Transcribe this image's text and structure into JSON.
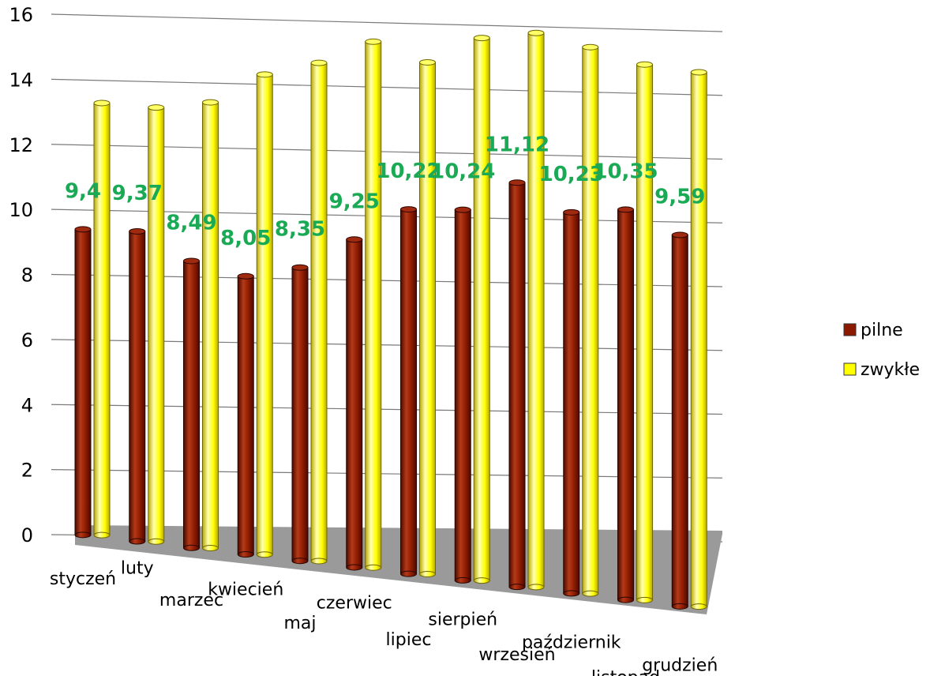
{
  "chart_data": {
    "type": "bar",
    "categories": [
      "styczeń",
      "luty",
      "marzec",
      "kwiecień",
      "maj",
      "czerwiec",
      "lipiec",
      "sierpień",
      "wrzesień",
      "październik",
      "listopad",
      "grudzień"
    ],
    "series": [
      {
        "name": "pilne",
        "color": "#8b1a00",
        "values": [
          9.4,
          9.37,
          8.49,
          8.05,
          8.35,
          9.25,
          10.22,
          10.24,
          11.12,
          10.23,
          10.35,
          9.59
        ],
        "labels": [
          "9,4",
          "9,37",
          "8,49",
          "8,05",
          "8,35",
          "9,25",
          "10,22",
          "10,24",
          "11,12",
          "10,23",
          "10,35",
          "9,59"
        ]
      },
      {
        "name": "zwykłe",
        "color": "#ffff00",
        "values": [
          13.3,
          13.2,
          13.4,
          14.3,
          14.7,
          15.4,
          14.8,
          15.6,
          15.8,
          15.4,
          14.9,
          14.7
        ]
      }
    ],
    "yticks": [
      "0",
      "2",
      "4",
      "6",
      "8",
      "10",
      "12",
      "14",
      "16"
    ],
    "ylim": [
      0,
      16
    ],
    "grid": true,
    "legend": "right"
  }
}
